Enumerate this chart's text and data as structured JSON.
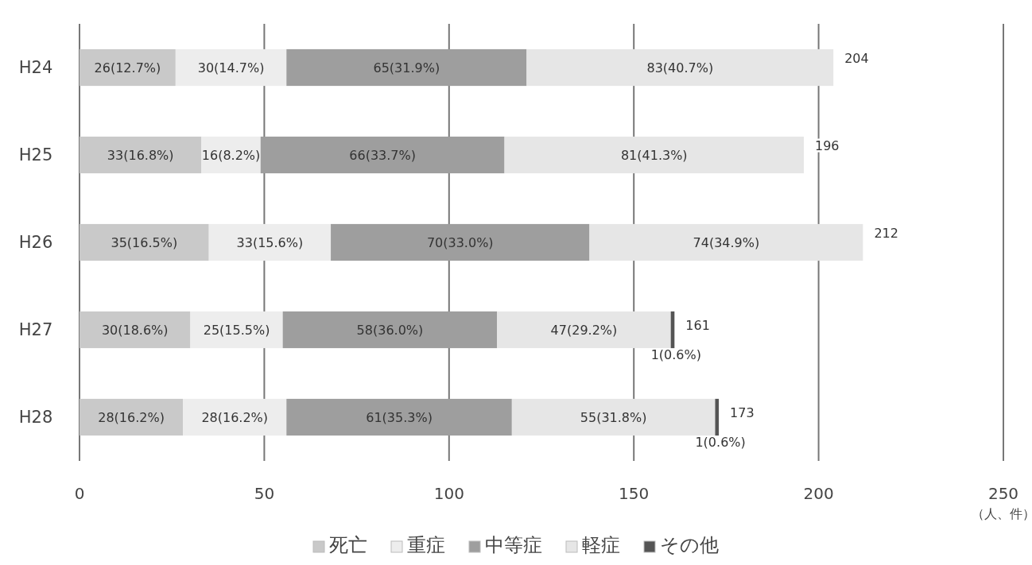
{
  "chart_data": {
    "type": "bar",
    "orientation": "horizontal",
    "stacked": true,
    "categories": [
      "H24",
      "H25",
      "H26",
      "H27",
      "H28"
    ],
    "series": [
      {
        "name": "死亡",
        "color": "#c9c9c9",
        "values": [
          26,
          33,
          35,
          30,
          28
        ],
        "value_labels": [
          "26(12.7%)",
          "33(16.8%)",
          "35(16.5%)",
          "30(18.6%)",
          "28(16.2%)"
        ]
      },
      {
        "name": "重症",
        "color": "#ededed",
        "values": [
          30,
          16,
          33,
          25,
          28
        ],
        "value_labels": [
          "30(14.7%)",
          "16(8.2%)",
          "33(15.6%)",
          "25(15.5%)",
          "28(16.2%)"
        ]
      },
      {
        "name": "中等症",
        "color": "#9e9e9e",
        "values": [
          65,
          66,
          70,
          58,
          61
        ],
        "value_labels": [
          "65(31.9%)",
          "66(33.7%)",
          "70(33.0%)",
          "58(36.0%)",
          "61(35.3%)"
        ]
      },
      {
        "name": "軽症",
        "color": "#e6e6e6",
        "values": [
          83,
          81,
          74,
          47,
          55
        ],
        "value_labels": [
          "83(40.7%)",
          "81(41.3%)",
          "74(34.9%)",
          "47(29.2%)",
          "55(31.8%)"
        ]
      },
      {
        "name": "その他",
        "color": "#555555",
        "values": [
          0,
          0,
          0,
          1,
          1
        ],
        "value_labels": [
          null,
          null,
          null,
          "1(0.6%)",
          "1(0.6%)"
        ]
      }
    ],
    "totals": [
      "204",
      "196",
      "212",
      "161",
      "173"
    ],
    "xlim": [
      0,
      250
    ],
    "xticks": [
      0,
      50,
      100,
      150,
      200,
      250
    ],
    "xlabel": "（人、件）",
    "grid": "x",
    "legend": "bottom"
  }
}
